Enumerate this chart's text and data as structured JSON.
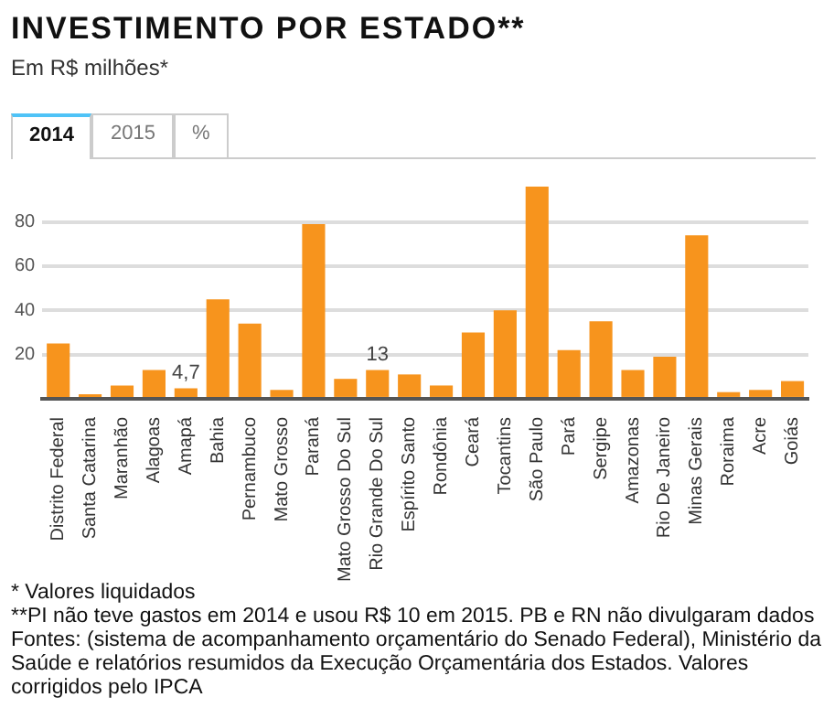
{
  "chart_data": {
    "type": "bar",
    "title": "INVESTIMENTO POR ESTADO**",
    "subtitle": "Em R$ milhões*",
    "categories": [
      "Distrito Federal",
      "Santa Catarina",
      "Maranhão",
      "Alagoas",
      "Amapá",
      "Bahia",
      "Pernambuco",
      "Mato Grosso",
      "Paraná",
      "Mato Grosso Do Sul",
      "Rio Grande Do Sul",
      "Espírito Santo",
      "Rondônia",
      "Ceará",
      "Tocantins",
      "São Paulo",
      "Pará",
      "Sergipe",
      "Amazonas",
      "Rio De Janeiro",
      "Minas Gerais",
      "Roraima",
      "Acre",
      "Goiás"
    ],
    "values": [
      25,
      2,
      6,
      13,
      4.7,
      45,
      34,
      4,
      79,
      9,
      13,
      11,
      6,
      30,
      40,
      96,
      22,
      35,
      13,
      19,
      74,
      3,
      4,
      8
    ],
    "value_labels": [
      null,
      null,
      null,
      null,
      "4,7",
      null,
      null,
      null,
      null,
      null,
      "13",
      null,
      null,
      null,
      null,
      null,
      null,
      null,
      null,
      null,
      null,
      null,
      null,
      null
    ],
    "color": "#f7941d",
    "ylim": [
      0,
      96
    ],
    "yticks": [
      {
        "value": 0,
        "label": null
      },
      20,
      40,
      60,
      80
    ],
    "grid": "y",
    "legend": false,
    "annotations": [
      "2014",
      "2015",
      "%",
      "* Valores liquidados",
      "**PI não teve gastos em 2014 e usou R$ 10 em 2015. PB e RN não divulgaram dados",
      "Fontes: (sistema de acompanhamento orçamentário do Senado Federal), Ministério da Saúde e relatórios resumidos da Execução Orçamentária dos Estados. Valores corrigidos pelo IPCA"
    ]
  }
}
